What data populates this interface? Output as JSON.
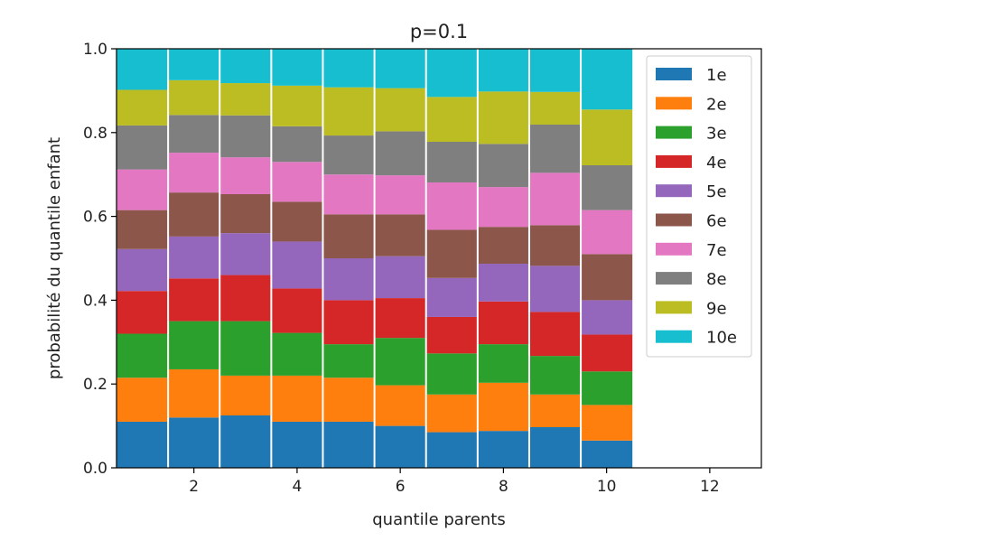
{
  "chart_data": {
    "type": "bar",
    "stacked": true,
    "title": "p=0.1",
    "xlabel": "quantile parents",
    "ylabel": "probabilité du quantile enfant",
    "xlim": [
      0.5,
      13
    ],
    "ylim": [
      0,
      1.0
    ],
    "xticks": [
      2,
      4,
      6,
      8,
      10,
      12
    ],
    "xtick_labels": [
      "2",
      "4",
      "6",
      "8",
      "10",
      "12"
    ],
    "yticks": [
      0,
      0.2,
      0.4,
      0.6,
      0.8,
      1.0
    ],
    "ytick_labels": [
      "0.0",
      "0.2",
      "0.4",
      "0.6",
      "0.8",
      "1.0"
    ],
    "categories": [
      1,
      2,
      3,
      4,
      5,
      6,
      7,
      8,
      9,
      10
    ],
    "bar_width": 1.0,
    "grid": false,
    "legend_position": "upper right",
    "series": [
      {
        "name": "1e",
        "color": "#1f77b4",
        "values": [
          0.11,
          0.12,
          0.125,
          0.11,
          0.11,
          0.1,
          0.085,
          0.088,
          0.097,
          0.065
        ]
      },
      {
        "name": "2e",
        "color": "#ff7f0e",
        "values": [
          0.105,
          0.115,
          0.095,
          0.11,
          0.105,
          0.097,
          0.09,
          0.115,
          0.078,
          0.085
        ]
      },
      {
        "name": "3e",
        "color": "#2ca02c",
        "values": [
          0.105,
          0.115,
          0.13,
          0.102,
          0.08,
          0.113,
          0.098,
          0.092,
          0.092,
          0.08
        ]
      },
      {
        "name": "4e",
        "color": "#d62728",
        "values": [
          0.102,
          0.102,
          0.11,
          0.106,
          0.105,
          0.095,
          0.087,
          0.102,
          0.105,
          0.088
        ]
      },
      {
        "name": "5e",
        "color": "#9467bd",
        "values": [
          0.1,
          0.1,
          0.1,
          0.112,
          0.1,
          0.1,
          0.093,
          0.09,
          0.11,
          0.082
        ]
      },
      {
        "name": "6e",
        "color": "#8c564b",
        "values": [
          0.093,
          0.105,
          0.093,
          0.095,
          0.105,
          0.1,
          0.115,
          0.088,
          0.097,
          0.11
        ]
      },
      {
        "name": "7e",
        "color": "#e377c2",
        "values": [
          0.097,
          0.095,
          0.088,
          0.095,
          0.095,
          0.093,
          0.113,
          0.095,
          0.125,
          0.105
        ]
      },
      {
        "name": "8e",
        "color": "#7f7f7f",
        "values": [
          0.105,
          0.09,
          0.1,
          0.085,
          0.093,
          0.105,
          0.097,
          0.103,
          0.115,
          0.107
        ]
      },
      {
        "name": "9e",
        "color": "#bcbd22",
        "values": [
          0.085,
          0.083,
          0.077,
          0.097,
          0.115,
          0.103,
          0.107,
          0.125,
          0.078,
          0.133
        ]
      },
      {
        "name": "10e",
        "color": "#17becf",
        "values": [
          0.098,
          0.075,
          0.082,
          0.088,
          0.092,
          0.094,
          0.115,
          0.102,
          0.103,
          0.145
        ]
      }
    ]
  }
}
